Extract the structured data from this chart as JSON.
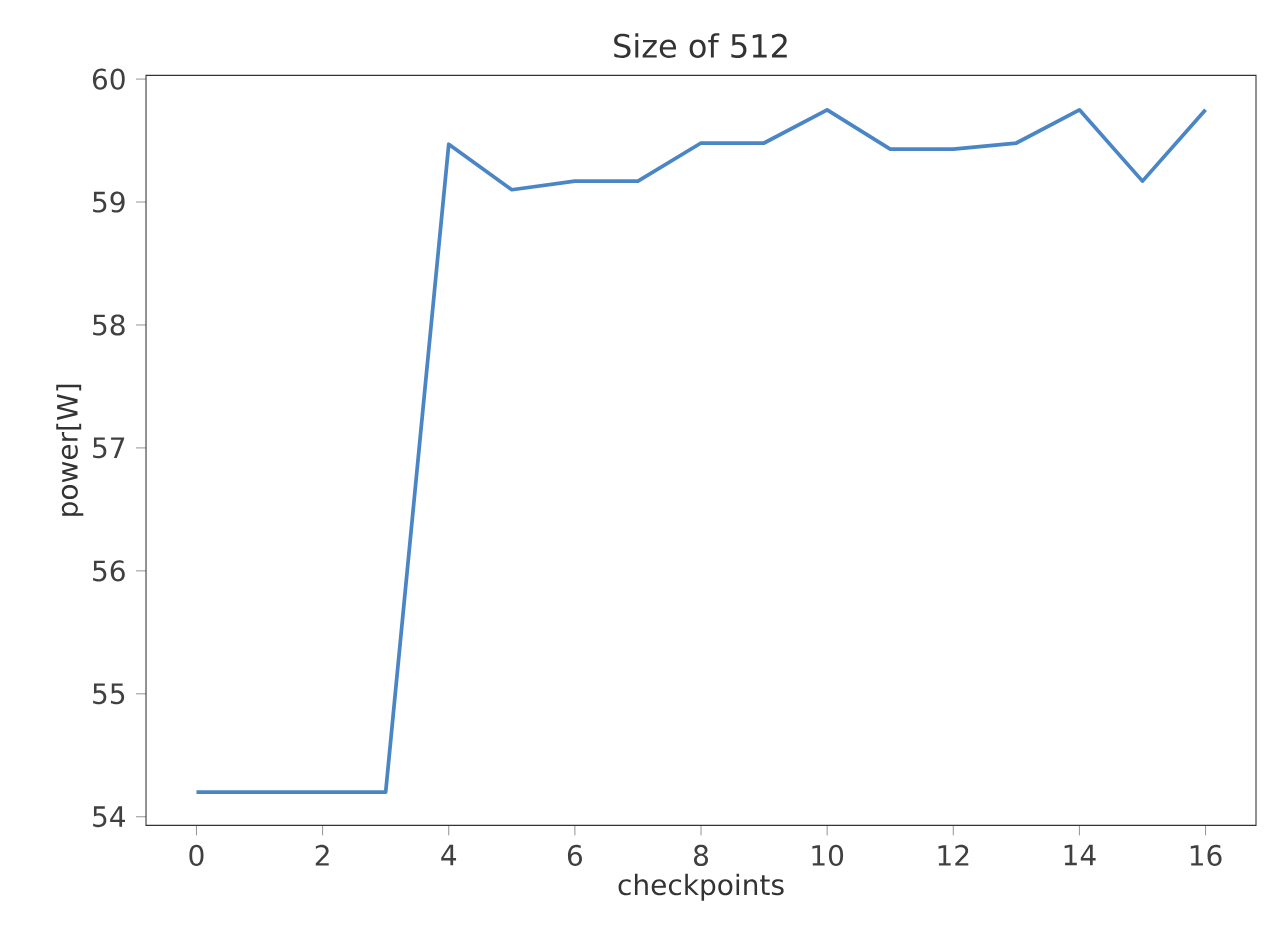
{
  "chart_data": {
    "type": "line",
    "title": "Size of 512",
    "xlabel": "checkpoints",
    "ylabel": "power[W]",
    "x": [
      0,
      1,
      2,
      3,
      4,
      5,
      6,
      7,
      8,
      9,
      10,
      11,
      12,
      13,
      14,
      15,
      16
    ],
    "series": [
      {
        "color": "#4a86c5",
        "values": [
          54.2,
          54.2,
          54.2,
          54.2,
          59.47,
          59.1,
          59.17,
          59.17,
          59.48,
          59.48,
          59.75,
          59.43,
          59.43,
          59.48,
          59.75,
          59.17,
          59.75
        ]
      }
    ],
    "xlim": [
      -0.8,
      16.8
    ],
    "ylim": [
      53.93,
      60.03
    ],
    "xticks": [
      0,
      2,
      4,
      6,
      8,
      10,
      12,
      14,
      16
    ],
    "yticks": [
      54,
      55,
      56,
      57,
      58,
      59,
      60
    ],
    "grid": false,
    "marker": "none",
    "line_style": "solid"
  }
}
